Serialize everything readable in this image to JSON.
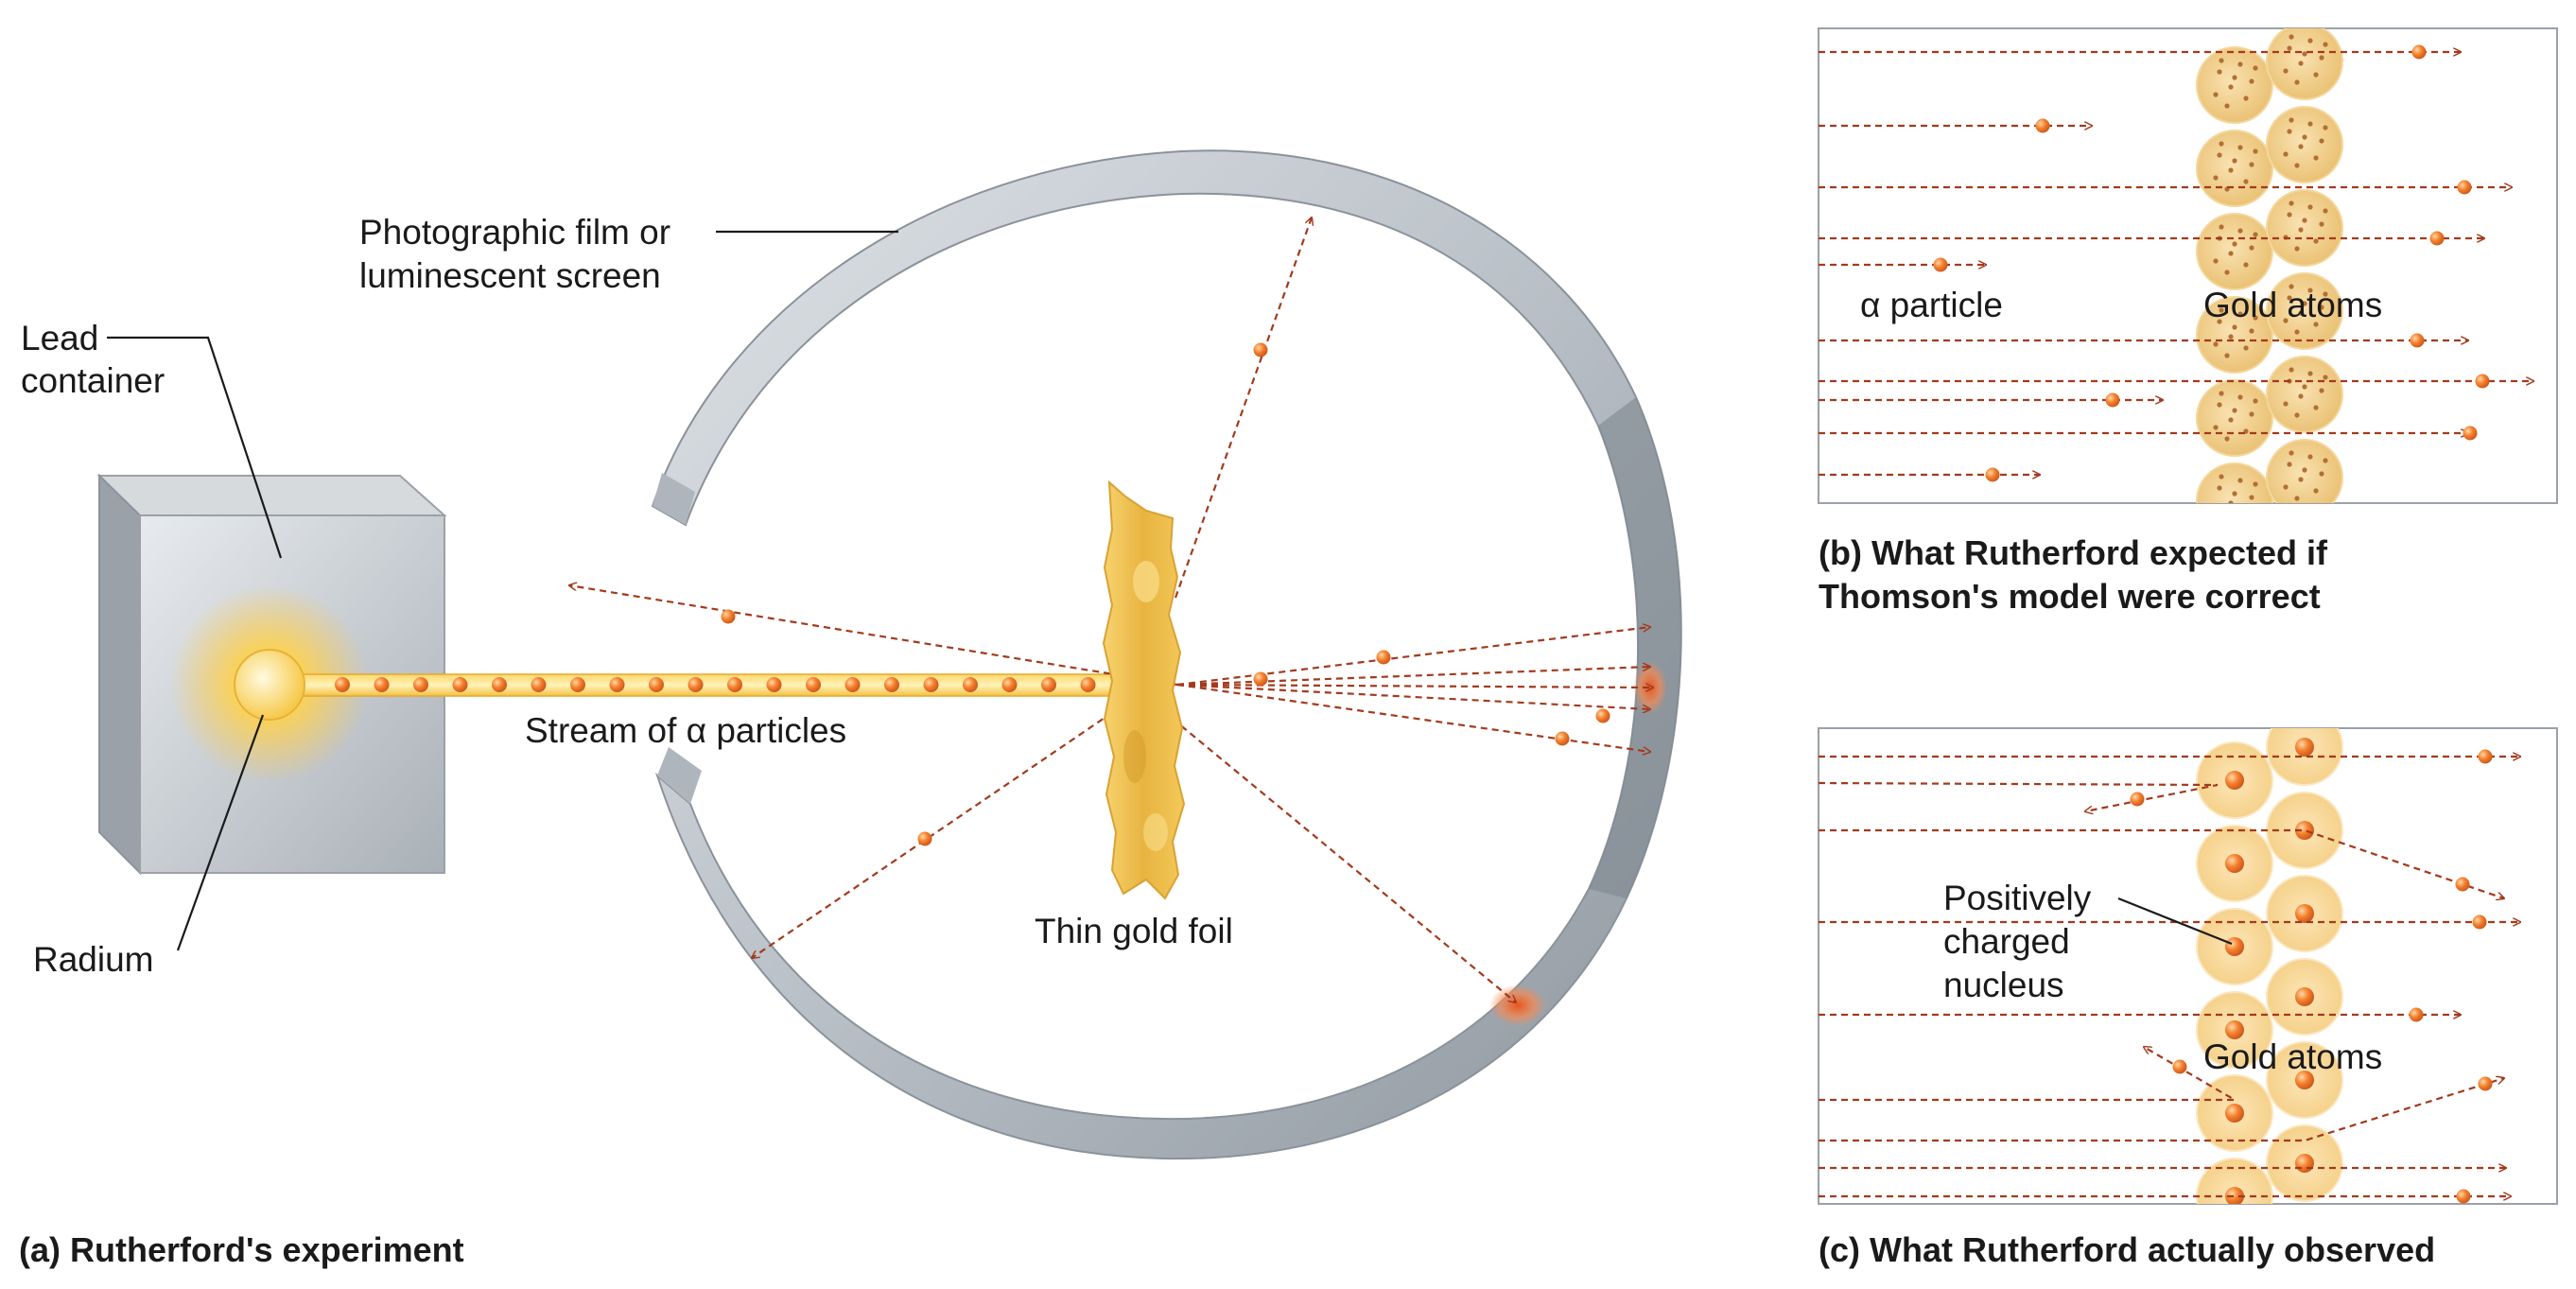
{
  "panel_a": {
    "caption": "(a) Rutherford's experiment",
    "labels": {
      "lead_container": [
        "Lead",
        "container"
      ],
      "radium": "Radium",
      "screen": [
        "Photographic film or",
        "luminescent screen"
      ],
      "stream": "Stream of α particles",
      "foil": "Thin gold  foil"
    }
  },
  "panel_b": {
    "caption": [
      "(b) What Rutherford expected if",
      "Thomson's model were correct"
    ],
    "alpha_label": "α particle",
    "gold_label": "Gold atoms"
  },
  "panel_c": {
    "caption": "(c) What Rutherford actually observed",
    "nucleus_label": [
      "Positively",
      "charged",
      "nucleus"
    ],
    "gold_label": "Gold atoms"
  },
  "colors": {
    "particle": "#f07a2a",
    "ray": "#a33a1c",
    "gold": "#f2c25a",
    "screen": "#c3c9cf"
  }
}
